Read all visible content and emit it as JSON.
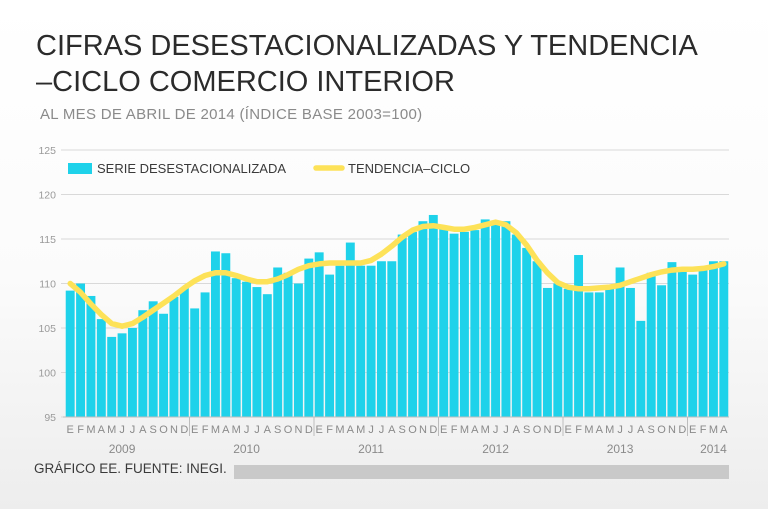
{
  "header": {
    "title_line1": "CIFRAS DESESTACIONALIZADAS Y TENDENCIA",
    "title_line2": "–CICLO COMERCIO INTERIOR",
    "subtitle": "AL MES DE ABRIL DE 2014 (ÍNDICE BASE 2003=100)"
  },
  "footer": {
    "credit": "GRÁFICO EE. FUENTE: INEGI."
  },
  "colors": {
    "bars": "#1ed2ea",
    "trend": "#fde258",
    "grid": "#d9d9d9"
  },
  "chart_data": {
    "type": "bar",
    "title": "CIFRAS DESESTACIONALIZADAS Y TENDENCIA –CICLO COMERCIO INTERIOR",
    "subtitle": "AL MES DE ABRIL DE 2014 (ÍNDICE BASE 2003=100)",
    "xlabel": "",
    "ylabel": "",
    "ylim": [
      95,
      125
    ],
    "yticks": [
      95,
      100,
      105,
      110,
      115,
      120,
      125
    ],
    "legend": [
      "SERIE DESESTACIONALIZADA",
      "TENDENCIA–CICLO"
    ],
    "legend_position": "top-left",
    "month_letters": [
      "E",
      "F",
      "M",
      "A",
      "M",
      "J",
      "J",
      "A",
      "S",
      "O",
      "N",
      "D",
      "E",
      "F",
      "M",
      "A",
      "M",
      "J",
      "J",
      "A",
      "S",
      "O",
      "N",
      "D",
      "E",
      "F",
      "M",
      "A",
      "M",
      "J",
      "J",
      "A",
      "S",
      "O",
      "N",
      "D",
      "E",
      "F",
      "M",
      "A",
      "M",
      "J",
      "J",
      "A",
      "S",
      "O",
      "N",
      "D",
      "E",
      "F",
      "M",
      "A",
      "M",
      "J",
      "J",
      "A",
      "S",
      "O",
      "N",
      "D",
      "E",
      "F",
      "M",
      "A"
    ],
    "year_labels": [
      {
        "year": "2009",
        "month_index": 5
      },
      {
        "year": "2010",
        "month_index": 17
      },
      {
        "year": "2011",
        "month_index": 29
      },
      {
        "year": "2012",
        "month_index": 41
      },
      {
        "year": "2013",
        "month_index": 53
      },
      {
        "year": "2014",
        "month_index": 62
      }
    ],
    "series": [
      {
        "name": "SERIE DESESTACIONALIZADA",
        "type": "bar",
        "values": [
          109.2,
          110.0,
          108.6,
          106.0,
          104.0,
          104.4,
          105.0,
          107.0,
          108.0,
          106.6,
          108.5,
          109.5,
          107.2,
          109.0,
          113.6,
          113.4,
          110.6,
          110.2,
          109.6,
          108.8,
          111.8,
          111.2,
          110.0,
          112.8,
          113.5,
          111.0,
          112.0,
          114.6,
          112.0,
          112.0,
          112.5,
          112.5,
          115.5,
          115.8,
          117.0,
          117.7,
          116.5,
          115.6,
          115.8,
          116.0,
          117.2,
          117.0,
          117.0,
          115.5,
          114.0,
          112.5,
          109.5,
          110.0,
          109.4,
          113.2,
          109.0,
          109.0,
          109.5,
          111.8,
          109.5,
          105.8,
          111.2,
          109.8,
          112.4,
          111.8,
          111.0,
          111.5,
          112.5,
          112.5
        ]
      },
      {
        "name": "TENDENCIA–CICLO",
        "type": "line",
        "values": [
          110.0,
          109.0,
          107.7,
          106.5,
          105.5,
          105.2,
          105.5,
          106.2,
          107.0,
          107.8,
          108.6,
          109.5,
          110.3,
          110.9,
          111.2,
          111.2,
          110.9,
          110.5,
          110.2,
          110.2,
          110.5,
          111.0,
          111.6,
          112.0,
          112.2,
          112.3,
          112.3,
          112.3,
          112.3,
          112.6,
          113.3,
          114.2,
          115.2,
          116.0,
          116.4,
          116.5,
          116.3,
          116.1,
          116.1,
          116.3,
          116.6,
          116.9,
          116.6,
          115.7,
          114.3,
          112.6,
          111.2,
          110.1,
          109.6,
          109.4,
          109.4,
          109.5,
          109.6,
          109.8,
          110.2,
          110.6,
          111.0,
          111.3,
          111.5,
          111.6,
          111.6,
          111.7,
          111.9,
          112.2
        ]
      }
    ]
  }
}
